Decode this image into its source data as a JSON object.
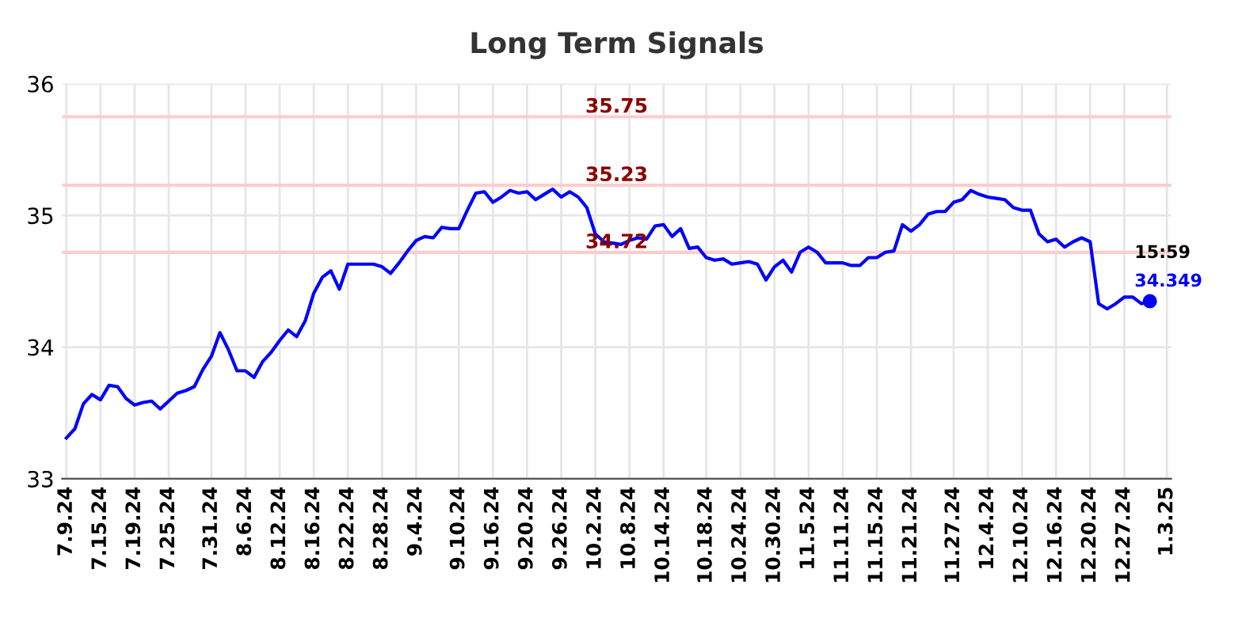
{
  "chart_data": {
    "type": "line",
    "title": "Long Term Signals",
    "categories": [
      "7.9.24",
      null,
      null,
      null,
      "7.15.24",
      null,
      null,
      null,
      "7.19.24",
      null,
      null,
      null,
      "7.25.24",
      null,
      null,
      null,
      null,
      "7.31.24",
      null,
      null,
      null,
      "8.6.24",
      null,
      null,
      null,
      "8.12.24",
      null,
      null,
      null,
      "8.16.24",
      null,
      null,
      null,
      "8.22.24",
      null,
      null,
      null,
      "8.28.24",
      null,
      null,
      null,
      "9.4.24",
      null,
      null,
      null,
      null,
      "9.10.24",
      null,
      null,
      null,
      "9.16.24",
      null,
      null,
      null,
      "9.20.24",
      null,
      null,
      null,
      "9.26.24",
      null,
      null,
      null,
      "10.2.24",
      null,
      null,
      null,
      "10.8.24",
      null,
      null,
      null,
      "10.14.24",
      null,
      null,
      null,
      null,
      "10.18.24",
      null,
      null,
      null,
      "10.24.24",
      null,
      null,
      null,
      "10.30.24",
      null,
      null,
      null,
      "11.5.24",
      null,
      null,
      null,
      "11.11.24",
      null,
      null,
      null,
      "11.15.24",
      null,
      null,
      null,
      "11.21.24",
      null,
      null,
      null,
      null,
      "11.27.24",
      null,
      null,
      null,
      "12.4.24",
      null,
      null,
      null,
      "12.10.24",
      null,
      null,
      null,
      "12.16.24",
      null,
      null,
      null,
      "12.20.24",
      null,
      null,
      null,
      "12.27.24",
      null,
      null,
      null,
      null,
      "1.3.25"
    ],
    "series": [
      {
        "color": "#0000ff",
        "marker": "none",
        "values": [
          33.31,
          33.38,
          33.57,
          33.64,
          33.6,
          33.71,
          33.7,
          33.61,
          33.56,
          33.58,
          33.59,
          33.53,
          33.59,
          33.65,
          33.67,
          33.7,
          33.83,
          33.93,
          34.11,
          33.98,
          33.82,
          33.82,
          33.77,
          33.89,
          33.96,
          34.05,
          34.13,
          34.08,
          34.2,
          34.41,
          34.53,
          34.58,
          34.44,
          34.63,
          34.63,
          34.63,
          34.63,
          34.61,
          34.56,
          34.64,
          34.73,
          34.81,
          34.84,
          34.83,
          34.91,
          34.9,
          34.9,
          35.04,
          35.17,
          35.18,
          35.1,
          35.14,
          35.19,
          35.17,
          35.18,
          35.12,
          35.16,
          35.2,
          35.14,
          35.18,
          35.14,
          35.06,
          34.86,
          34.8,
          34.79,
          34.78,
          34.81,
          34.83,
          34.82,
          34.92,
          34.93,
          34.84,
          34.9,
          34.75,
          34.76,
          34.68,
          34.66,
          34.67,
          34.63,
          34.64,
          34.65,
          34.63,
          34.51,
          34.61,
          34.66,
          34.57,
          34.72,
          34.76,
          34.72,
          34.64,
          34.64,
          34.64,
          34.62,
          34.62,
          34.68,
          34.68,
          34.72,
          34.73,
          34.93,
          34.88,
          34.93,
          35.01,
          35.03,
          35.03,
          35.1,
          35.12,
          35.19,
          35.16,
          35.14,
          35.13,
          35.12,
          35.06,
          35.04,
          35.04,
          34.86,
          34.8,
          34.82,
          34.76,
          34.8,
          34.83,
          34.8,
          34.33,
          34.29,
          34.33,
          34.38,
          34.38,
          34.33,
          34.349,
          null,
          null
        ]
      },
      {
        "type": "scatter",
        "color": "#0000ff",
        "marker": "circle",
        "values": [
          null,
          null,
          null,
          null,
          null,
          null,
          null,
          null,
          null,
          null,
          null,
          null,
          null,
          null,
          null,
          null,
          null,
          null,
          null,
          null,
          null,
          null,
          null,
          null,
          null,
          null,
          null,
          null,
          null,
          null,
          null,
          null,
          null,
          null,
          null,
          null,
          null,
          null,
          null,
          null,
          null,
          null,
          null,
          null,
          null,
          null,
          null,
          null,
          null,
          null,
          null,
          null,
          null,
          null,
          null,
          null,
          null,
          null,
          null,
          null,
          null,
          null,
          null,
          null,
          null,
          null,
          null,
          null,
          null,
          null,
          null,
          null,
          null,
          null,
          null,
          null,
          null,
          null,
          null,
          null,
          null,
          null,
          null,
          null,
          null,
          null,
          null,
          null,
          null,
          null,
          null,
          null,
          null,
          null,
          null,
          null,
          null,
          null,
          null,
          null,
          null,
          null,
          null,
          null,
          null,
          null,
          null,
          null,
          null,
          null,
          null,
          null,
          null,
          null,
          null,
          null,
          null,
          null,
          null,
          null,
          null,
          null,
          null,
          null,
          null,
          null,
          null,
          34.349,
          null,
          null
        ],
        "value_labels": [
          null,
          null,
          null,
          null,
          null,
          null,
          null,
          null,
          null,
          null,
          null,
          null,
          null,
          null,
          null,
          null,
          null,
          null,
          null,
          null,
          null,
          null,
          null,
          null,
          null,
          null,
          null,
          null,
          null,
          null,
          null,
          null,
          null,
          null,
          null,
          null,
          null,
          null,
          null,
          null,
          null,
          null,
          null,
          null,
          null,
          null,
          null,
          null,
          null,
          null,
          null,
          null,
          null,
          null,
          null,
          null,
          null,
          null,
          null,
          null,
          null,
          null,
          null,
          null,
          null,
          null,
          null,
          null,
          null,
          null,
          null,
          null,
          null,
          null,
          null,
          null,
          null,
          null,
          null,
          null,
          null,
          null,
          null,
          null,
          null,
          null,
          null,
          null,
          null,
          null,
          null,
          null,
          null,
          null,
          null,
          null,
          null,
          null,
          null,
          null,
          null,
          null,
          null,
          null,
          null,
          null,
          null,
          null,
          null,
          null,
          null,
          null,
          null,
          null,
          null,
          null,
          null,
          null,
          null,
          null,
          null,
          null,
          null,
          null,
          null,
          null,
          null,
          "34.349",
          null,
          null
        ]
      }
    ],
    "annotations": [
      {
        "text": "15:59",
        "y": 34.349
      }
    ],
    "ylim": [
      33,
      36
    ],
    "yticks": [
      33,
      34,
      35,
      36
    ],
    "grid": true,
    "ref_lines": [
      {
        "axis": "y",
        "value": 35.75,
        "label": "35.75",
        "color": "#ffcccc"
      },
      {
        "axis": "y",
        "value": 35.23,
        "label": "35.23",
        "color": "#ffcccc"
      },
      {
        "axis": "y",
        "value": 34.72,
        "label": "34.72",
        "color": "#ffcccc"
      }
    ]
  }
}
